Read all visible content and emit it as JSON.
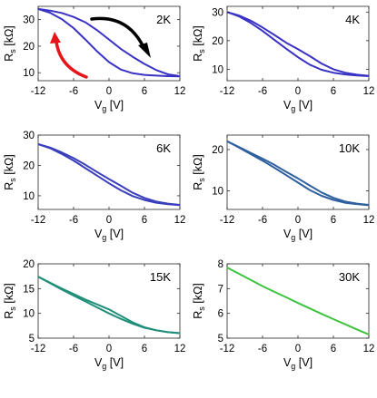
{
  "chart_data": [
    {
      "type": "line",
      "title": "2K",
      "xlabel": "V_g [V]",
      "ylabel": "R_s [kΩ]",
      "xlim": [
        -12,
        12
      ],
      "ylim": [
        7,
        35
      ],
      "xticks": [
        "-12",
        "-6",
        "0",
        "6",
        "12"
      ],
      "yticks": [
        "10",
        "20",
        "30"
      ],
      "series": [
        {
          "color": "#3a32c4",
          "x": [
            -12,
            -10,
            -8,
            -6,
            -4,
            -2,
            0,
            2,
            4,
            6,
            8,
            10,
            12
          ],
          "y": [
            34,
            33.4,
            32.5,
            31,
            29,
            26,
            22.5,
            19,
            16,
            13.3,
            11,
            9.4,
            8.7
          ]
        },
        {
          "color": "#3a32c4",
          "x": [
            -12,
            -10,
            -8,
            -6,
            -4,
            -2,
            0,
            2,
            4,
            6,
            8,
            10,
            12
          ],
          "y": [
            34,
            32.6,
            30.2,
            26.8,
            22.5,
            18,
            14,
            11.2,
            9.8,
            9.2,
            8.9,
            8.7,
            8.6
          ]
        }
      ],
      "annotations": [
        {
          "label": "black-arrow",
          "direction": "forward sweep",
          "color": "#000000"
        },
        {
          "label": "red-arrow",
          "direction": "backward sweep",
          "color": "#e8141b"
        }
      ]
    },
    {
      "type": "line",
      "title": "4K",
      "xlabel": "V_g [V]",
      "ylabel": "R_s [kΩ]",
      "xlim": [
        -12,
        12
      ],
      "ylim": [
        6,
        32
      ],
      "xticks": [
        "-12",
        "-6",
        "0",
        "6",
        "12"
      ],
      "yticks": [
        "10",
        "20",
        "30"
      ],
      "series": [
        {
          "color": "#3a32c4",
          "x": [
            -12,
            -10,
            -8,
            -6,
            -4,
            -2,
            0,
            2,
            4,
            6,
            8,
            10,
            12
          ],
          "y": [
            30,
            28.8,
            27,
            24.6,
            22,
            19.3,
            17,
            14.6,
            12,
            10,
            8.8,
            8.1,
            7.7
          ]
        },
        {
          "color": "#3a32c4",
          "x": [
            -12,
            -10,
            -8,
            -6,
            -4,
            -2,
            0,
            2,
            4,
            6,
            8,
            10,
            12
          ],
          "y": [
            30,
            28.5,
            26.2,
            23.4,
            20.3,
            17.2,
            14.2,
            11.6,
            9.8,
            8.8,
            8.2,
            7.8,
            7.6
          ]
        }
      ]
    },
    {
      "type": "line",
      "title": "6K",
      "xlabel": "V_g [V]",
      "ylabel": "R_s [kΩ]",
      "xlim": [
        -12,
        12
      ],
      "ylim": [
        5.5,
        30
      ],
      "xticks": [
        "-12",
        "-6",
        "0",
        "6",
        "12"
      ],
      "yticks": [
        "10",
        "20",
        "30"
      ],
      "series": [
        {
          "color": "#3a3ebc",
          "x": [
            -12,
            -10,
            -8,
            -6,
            -4,
            -2,
            0,
            2,
            4,
            6,
            8,
            10,
            12
          ],
          "y": [
            27,
            25.9,
            24.3,
            22.4,
            20.2,
            17.8,
            15.5,
            13.3,
            11,
            9.3,
            8.1,
            7.4,
            7
          ]
        },
        {
          "color": "#3a3ebc",
          "x": [
            -12,
            -10,
            -8,
            -6,
            -4,
            -2,
            0,
            2,
            4,
            6,
            8,
            10,
            12
          ],
          "y": [
            27,
            25.7,
            23.8,
            21.6,
            19.1,
            16.6,
            14.1,
            11.8,
            9.9,
            8.6,
            7.7,
            7.2,
            6.9
          ]
        }
      ]
    },
    {
      "type": "line",
      "title": "10K",
      "xlabel": "V_g [V]",
      "ylabel": "R_s [kΩ]",
      "xlim": [
        -12,
        12
      ],
      "ylim": [
        5.5,
        23.5
      ],
      "xticks": [
        "-12",
        "-6",
        "0",
        "6",
        "12"
      ],
      "yticks": [
        "10",
        "20"
      ],
      "series": [
        {
          "color": "#2e5f9e",
          "x": [
            -12,
            -10,
            -8,
            -6,
            -4,
            -2,
            0,
            2,
            4,
            6,
            8,
            10,
            12
          ],
          "y": [
            22,
            20.6,
            19.2,
            17.8,
            16.3,
            14.6,
            13,
            11.3,
            9.6,
            8.3,
            7.4,
            6.9,
            6.6
          ]
        },
        {
          "color": "#2e5f9e",
          "x": [
            -12,
            -10,
            -8,
            -6,
            -4,
            -2,
            0,
            2,
            4,
            6,
            8,
            10,
            12
          ],
          "y": [
            22,
            20.5,
            18.9,
            17.3,
            15.6,
            13.8,
            12,
            10.2,
            8.8,
            7.8,
            7.1,
            6.8,
            6.5
          ]
        }
      ]
    },
    {
      "type": "line",
      "title": "15K",
      "xlabel": "V_g [V]",
      "ylabel": "R_s [kΩ]",
      "xlim": [
        -12,
        12
      ],
      "ylim": [
        5,
        20
      ],
      "xticks": [
        "-12",
        "-6",
        "0",
        "6",
        "12"
      ],
      "yticks": [
        "5",
        "10",
        "15",
        "20"
      ],
      "series": [
        {
          "color": "#1f8f79",
          "x": [
            -12,
            -10,
            -8,
            -6,
            -4,
            -2,
            0,
            2,
            4,
            6,
            8,
            10,
            12
          ],
          "y": [
            17.4,
            16.2,
            15,
            13.9,
            12.8,
            11.8,
            10.8,
            9.5,
            8.2,
            7.2,
            6.6,
            6.2,
            6
          ]
        },
        {
          "color": "#1f8f79",
          "x": [
            -12,
            -10,
            -8,
            -6,
            -4,
            -2,
            0,
            2,
            4,
            6,
            8,
            10,
            12
          ],
          "y": [
            17.4,
            16.1,
            14.8,
            13.6,
            12.4,
            11.2,
            10,
            8.9,
            7.9,
            7.1,
            6.6,
            6.2,
            6
          ]
        }
      ]
    },
    {
      "type": "line",
      "title": "30K",
      "xlabel": "V_g [V]",
      "ylabel": "R_s [kΩ]",
      "xlim": [
        -12,
        12
      ],
      "ylim": [
        5,
        8
      ],
      "xticks": [
        "-12",
        "-6",
        "0",
        "6",
        "12"
      ],
      "yticks": [
        "5",
        "6",
        "7",
        "8"
      ],
      "series": [
        {
          "color": "#3ec33e",
          "x": [
            -12,
            -10,
            -8,
            -6,
            -4,
            -2,
            0,
            2,
            4,
            6,
            8,
            10,
            12
          ],
          "y": [
            7.85,
            7.6,
            7.35,
            7.1,
            6.87,
            6.65,
            6.42,
            6.2,
            5.98,
            5.77,
            5.56,
            5.35,
            5.15
          ]
        }
      ]
    }
  ]
}
